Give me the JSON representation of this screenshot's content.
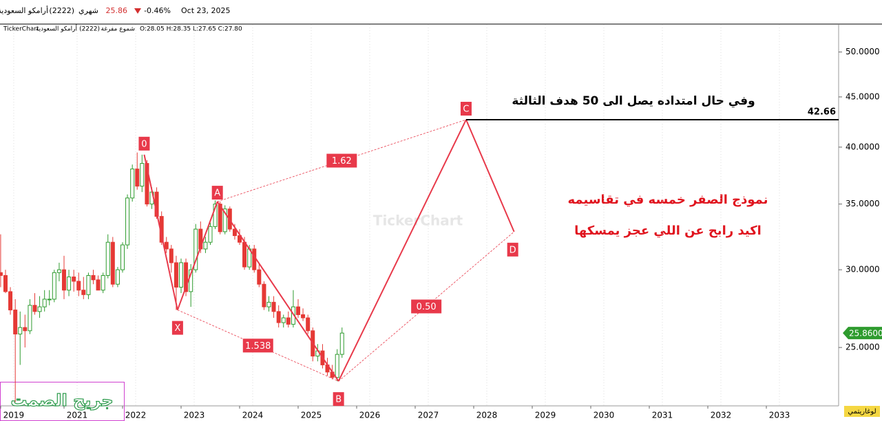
{
  "chart_data": {
    "type": "candlestick",
    "header": {
      "date": "Oct 23, 2025",
      "change": "-0.46%",
      "price": 25.86,
      "period": "شهري",
      "code": "(2222)",
      "name": "أرامكو السعودية"
    },
    "subheader": {
      "source": "TickerChart",
      "name": "أرامكو السعودية",
      "code": "(2222)",
      "candle_type": "شموع مفرغة",
      "ohlc": "O:28.05 H:28.35 L:27.65 C:27.80"
    },
    "watermark": "TickerChart",
    "x": [
      2019.917,
      2020.0,
      2020.083,
      2020.167,
      2020.25,
      2020.333,
      2020.417,
      2020.5,
      2020.583,
      2020.667,
      2020.75,
      2020.833,
      2020.917,
      2021.0,
      2021.083,
      2021.167,
      2021.25,
      2021.333,
      2021.417,
      2021.5,
      2021.583,
      2021.667,
      2021.75,
      2021.833,
      2021.917,
      2022.0,
      2022.083,
      2022.167,
      2022.25,
      2022.333,
      2022.417,
      2022.5,
      2022.583,
      2022.667,
      2022.75,
      2022.833,
      2022.917,
      2023.0,
      2023.083,
      2023.167,
      2023.25,
      2023.333,
      2023.417,
      2023.5,
      2023.583,
      2023.667,
      2023.75,
      2023.833,
      2023.917,
      2024.0,
      2024.083,
      2024.167,
      2024.25,
      2024.333,
      2024.417,
      2024.5,
      2024.583,
      2024.667,
      2024.75,
      2024.833,
      2024.917,
      2025.0,
      2025.083,
      2025.167,
      2025.25,
      2025.333,
      2025.417,
      2025.5,
      2025.583,
      2025.667,
      2025.75
    ],
    "open": [
      29.8,
      29.6,
      28.5,
      27.3,
      25.8,
      26.2,
      26.0,
      27.6,
      27.2,
      27.5,
      28.0,
      28.0,
      29.8,
      30.0,
      28.6,
      29.5,
      29.2,
      28.6,
      28.3,
      29.6,
      29.3,
      28.6,
      29.6,
      32.0,
      29.0,
      30.0,
      31.8,
      35.5,
      38.0,
      36.5,
      38.5,
      35.0,
      36.0,
      34.0,
      32.0,
      31.5,
      30.5,
      28.8,
      30.5,
      28.5,
      30.0,
      33.0,
      31.5,
      32.0,
      33.2,
      35.0,
      32.8,
      34.6,
      33.0,
      32.5,
      32.0,
      30.2,
      31.5,
      30.0,
      29.0,
      27.5,
      27.8,
      27.2,
      26.5,
      26.8,
      26.4,
      27.5,
      27.0,
      26.8,
      26.0,
      24.5,
      24.8,
      24.0,
      23.6,
      23.3,
      24.6
    ],
    "high": [
      32.6,
      30.0,
      28.8,
      28.0,
      27.2,
      27.0,
      28.0,
      28.4,
      28.2,
      28.6,
      28.6,
      30.0,
      30.5,
      31.0,
      30.0,
      30.0,
      29.8,
      29.5,
      29.8,
      30.0,
      29.6,
      29.8,
      32.6,
      32.4,
      30.2,
      32.0,
      35.8,
      38.4,
      39.5,
      39.3,
      38.8,
      36.4,
      36.4,
      34.4,
      32.4,
      31.8,
      31.0,
      30.8,
      30.8,
      30.4,
      33.4,
      33.6,
      32.4,
      33.5,
      35.3,
      35.2,
      34.9,
      34.8,
      33.4,
      33.0,
      32.4,
      31.8,
      31.8,
      30.4,
      29.2,
      28.2,
      28.2,
      27.6,
      27.0,
      27.2,
      28.6,
      28.0,
      27.4,
      27.0,
      26.2,
      25.2,
      25.2,
      24.4,
      24.0,
      24.9,
      26.2
    ],
    "low": [
      28.8,
      28.4,
      27.0,
      22.0,
      24.0,
      25.0,
      25.8,
      27.0,
      26.8,
      27.2,
      27.6,
      27.8,
      29.2,
      28.0,
      28.2,
      28.5,
      28.2,
      28.0,
      28.0,
      29.0,
      28.8,
      28.4,
      29.4,
      28.8,
      28.8,
      29.8,
      31.5,
      35.2,
      36.2,
      36.0,
      34.8,
      34.6,
      33.8,
      31.8,
      31.2,
      29.8,
      27.3,
      28.4,
      28.2,
      27.5,
      29.8,
      31.2,
      31.2,
      31.8,
      33.0,
      32.6,
      32.6,
      32.8,
      32.2,
      31.8,
      30.0,
      30.0,
      29.8,
      28.8,
      27.3,
      27.2,
      26.8,
      26.2,
      26.2,
      26.2,
      26.2,
      26.8,
      26.6,
      25.8,
      24.2,
      24.2,
      23.8,
      23.4,
      23.2,
      23.1,
      24.4
    ],
    "close": [
      29.6,
      28.5,
      27.3,
      25.8,
      26.2,
      26.0,
      27.6,
      27.2,
      27.5,
      28.0,
      28.0,
      29.8,
      30.0,
      28.6,
      29.5,
      29.2,
      28.6,
      28.3,
      29.6,
      29.3,
      28.6,
      29.6,
      32.0,
      29.0,
      30.0,
      31.8,
      35.5,
      38.0,
      36.5,
      38.5,
      35.0,
      36.0,
      34.0,
      32.0,
      31.5,
      30.5,
      28.8,
      30.5,
      28.5,
      30.0,
      33.0,
      31.5,
      32.0,
      33.2,
      35.0,
      32.8,
      34.6,
      33.0,
      32.5,
      32.0,
      30.2,
      31.5,
      30.0,
      29.0,
      27.5,
      27.8,
      27.2,
      26.5,
      26.8,
      26.4,
      27.5,
      27.0,
      26.8,
      26.0,
      24.5,
      24.8,
      24.0,
      23.6,
      23.3,
      24.6,
      25.86
    ],
    "up_color": "#2e9b2e",
    "down_color": "#e53935",
    "log_scale": true,
    "y_axis_label": "لوغاريتمي",
    "xlim": [
      2019.906,
      2034.235
    ],
    "xticks": [
      {
        "value": 2019.917,
        "label": "2019"
      },
      2021,
      2022,
      2023,
      2024,
      2025,
      2026,
      2027,
      2028,
      2029,
      2030,
      2031,
      2032,
      2033
    ],
    "ylim": [
      21.8,
      53.3
    ],
    "yticks": [
      {
        "value": 25,
        "label": "25.0000"
      },
      {
        "value": 30,
        "label": "30.0000"
      },
      {
        "value": 35,
        "label": "35.0000"
      },
      {
        "value": 40,
        "label": "40.0000"
      },
      {
        "value": 45,
        "label": "45.0000"
      },
      {
        "value": 50,
        "label": "50.0000"
      }
    ],
    "grid": true,
    "last": {
      "value": 25.86,
      "label": "25.8600"
    },
    "pattern": {
      "color": "#e8394a",
      "labels": [
        "0",
        "X",
        "A",
        "B",
        "C",
        "D"
      ],
      "x": [
        2022.37,
        2022.94,
        2023.62,
        2025.69,
        2027.87,
        2028.69
      ],
      "y": [
        39.3,
        27.3,
        35.2,
        23.1,
        42.66,
        32.8
      ]
    },
    "ratio_labels": [
      "1.538",
      "1.62",
      "0.50"
    ],
    "level": 42.66,
    "annotations": [
      "وفي حال امتداده يصل الى 50 هدف الثالثة",
      "نموذج الصفر خمسه في تقاسيمه",
      "اكيد رابح عن اللي عجز يمسكها"
    ],
    "signature": "جريح الصمت"
  }
}
